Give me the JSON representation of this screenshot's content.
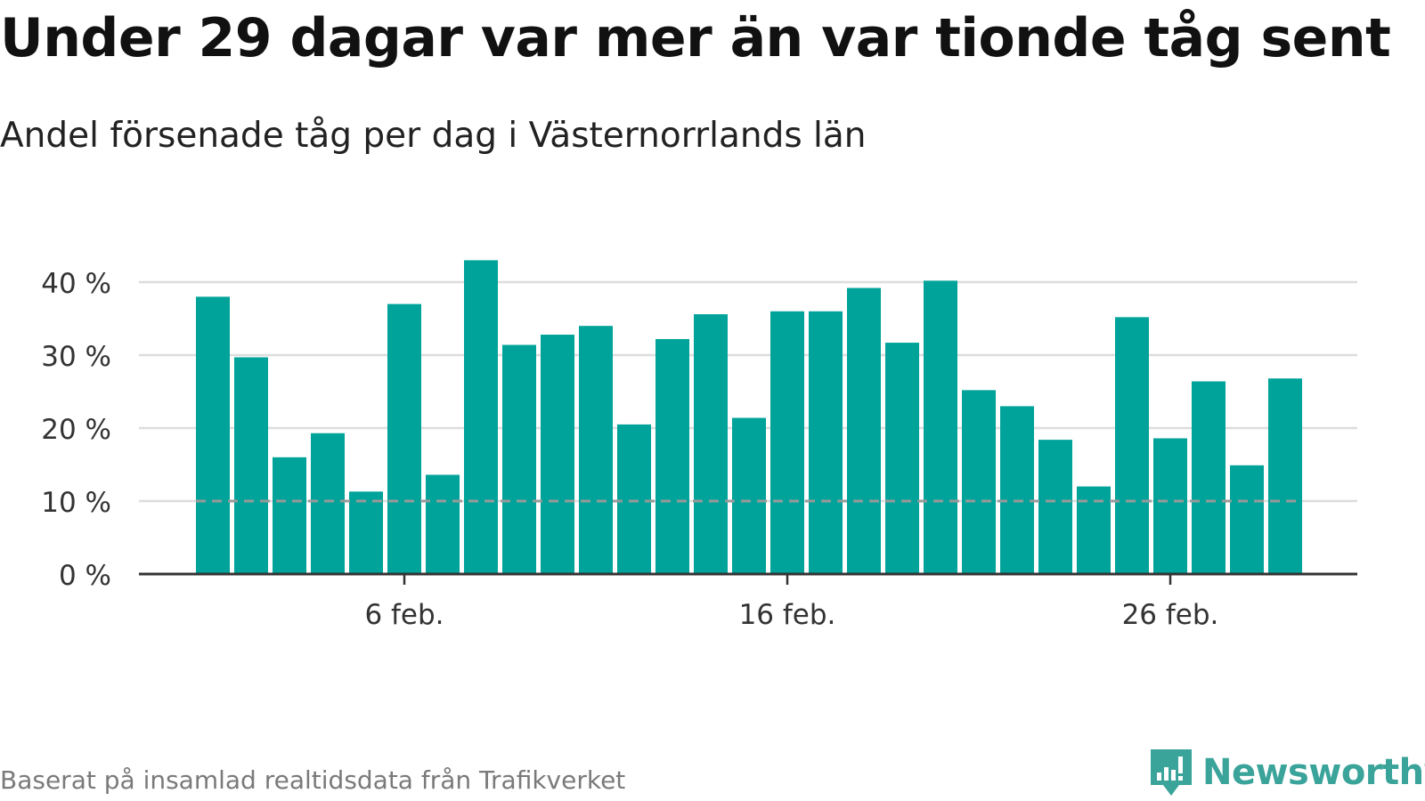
{
  "title": "Under 29 dagar var mer än var tionde tåg sent",
  "subtitle": "Andel försenade tåg per dag i Västernorrlands län",
  "source": "Baserat på insamlad realtidsdata från Trafikverket",
  "brand": {
    "name": "Newsworthy",
    "icon": "newsworthy-logo-icon",
    "color": "#3aa39a"
  },
  "colors": {
    "bar": "#00a39a",
    "grid": "#dddddd",
    "axis": "#333333",
    "reference_line": "#999999"
  },
  "chart_data": {
    "type": "bar",
    "title": "Under 29 dagar var mer än var tionde tåg sent",
    "subtitle": "Andel försenade tåg per dag i Västernorrlands län",
    "x_unit": "day of February",
    "x": [
      1,
      2,
      3,
      4,
      5,
      6,
      7,
      8,
      9,
      10,
      11,
      12,
      13,
      14,
      15,
      16,
      17,
      18,
      19,
      20,
      21,
      22,
      23,
      24,
      25,
      26,
      27,
      28,
      29
    ],
    "values": [
      38.0,
      29.7,
      16.0,
      19.3,
      11.3,
      37.0,
      13.6,
      43.0,
      31.4,
      32.8,
      34.0,
      20.5,
      32.2,
      35.6,
      21.4,
      36.0,
      36.0,
      39.2,
      31.7,
      40.2,
      25.2,
      23.0,
      18.4,
      12.0,
      35.2,
      18.6,
      26.4,
      14.9,
      26.8
    ],
    "xticks": [
      {
        "x": 6,
        "label": "6 feb."
      },
      {
        "x": 16,
        "label": "16 feb."
      },
      {
        "x": 26,
        "label": "26 feb."
      }
    ],
    "yticks": [
      {
        "value": 0,
        "label": "0 %"
      },
      {
        "value": 10,
        "label": "10 %"
      },
      {
        "value": 20,
        "label": "20 %"
      },
      {
        "value": 30,
        "label": "30 %"
      },
      {
        "value": 40,
        "label": "40 %"
      }
    ],
    "ylim": [
      0,
      43
    ],
    "reference_line": 10,
    "grid": true
  }
}
